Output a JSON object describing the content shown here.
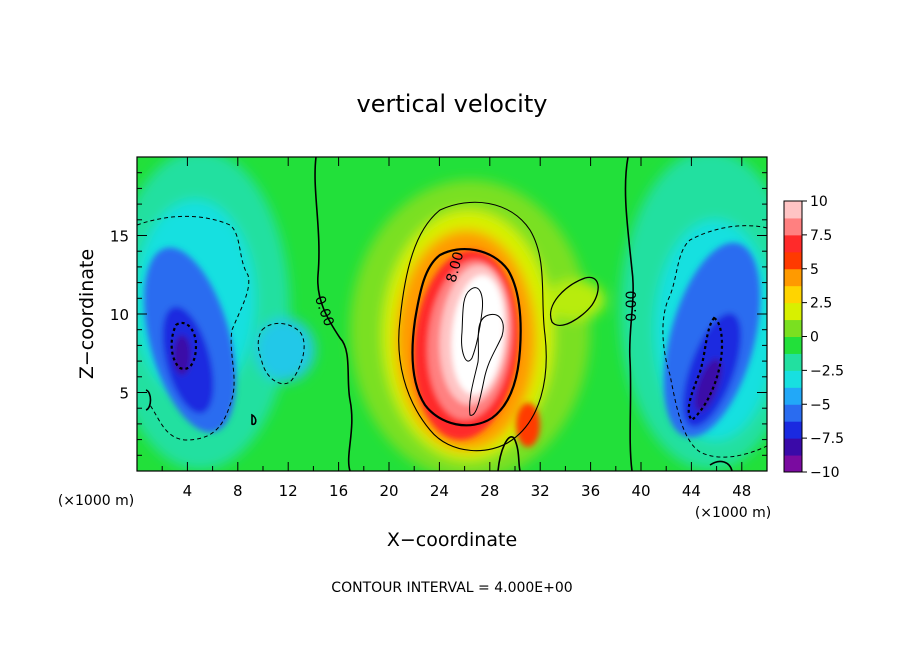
{
  "chart_data": {
    "type": "heatmap",
    "title": "vertical velocity",
    "xlabel": "X−coordinate",
    "ylabel": "Z−coordinate",
    "x_unit_left": "(×1000 m)",
    "x_unit_right": "(×1000 m)",
    "xlim": [
      0,
      50
    ],
    "ylim": [
      0,
      20
    ],
    "x_ticks": [
      4,
      8,
      12,
      16,
      20,
      24,
      28,
      32,
      36,
      40,
      44,
      48
    ],
    "y_ticks": [
      5,
      10,
      15
    ],
    "colorbar": {
      "range": [
        -10,
        10
      ],
      "levels": [
        {
          "label": "10",
          "value": 10
        },
        {
          "label": "7.5",
          "value": 7.5
        },
        {
          "label": "5",
          "value": 5
        },
        {
          "label": "2.5",
          "value": 2.5
        },
        {
          "label": "0",
          "value": 0
        },
        {
          "label": "−2.5",
          "value": -2.5
        },
        {
          "label": "−5",
          "value": -5
        },
        {
          "label": "−7.5",
          "value": -7.5
        },
        {
          "label": "−10",
          "value": -10
        }
      ],
      "colors": [
        "#7a0ba0",
        "#3a0aa8",
        "#1a2ae0",
        "#2a6cf0",
        "#22a8f8",
        "#18e0e0",
        "#22e0a0",
        "#22e03a",
        "#7ae020",
        "#d8f000",
        "#ffd400",
        "#ff9a00",
        "#ff3a00",
        "#ff2a2a",
        "#ff8080",
        "#ffc4c4"
      ]
    },
    "contour_labels": [
      {
        "text": "8.00",
        "x": 25.2,
        "z": 13.0,
        "rotate": -75
      },
      {
        "text": "0.00",
        "x": 14.9,
        "z": 10.2,
        "rotate": 70
      },
      {
        "text": "0.00",
        "x": 39.2,
        "z": 10.5,
        "rotate": -90
      }
    ],
    "contour_interval_text": "CONTOUR INTERVAL = 4.000E+00",
    "field_features": [
      {
        "kind": "updraft",
        "x": 26.5,
        "z": 9.5,
        "peak": 12
      },
      {
        "kind": "downdraft",
        "x": 4.0,
        "z": 8.0,
        "peak": -9
      },
      {
        "kind": "downdraft",
        "x": 45.5,
        "z": 6.0,
        "peak": -9
      }
    ]
  }
}
